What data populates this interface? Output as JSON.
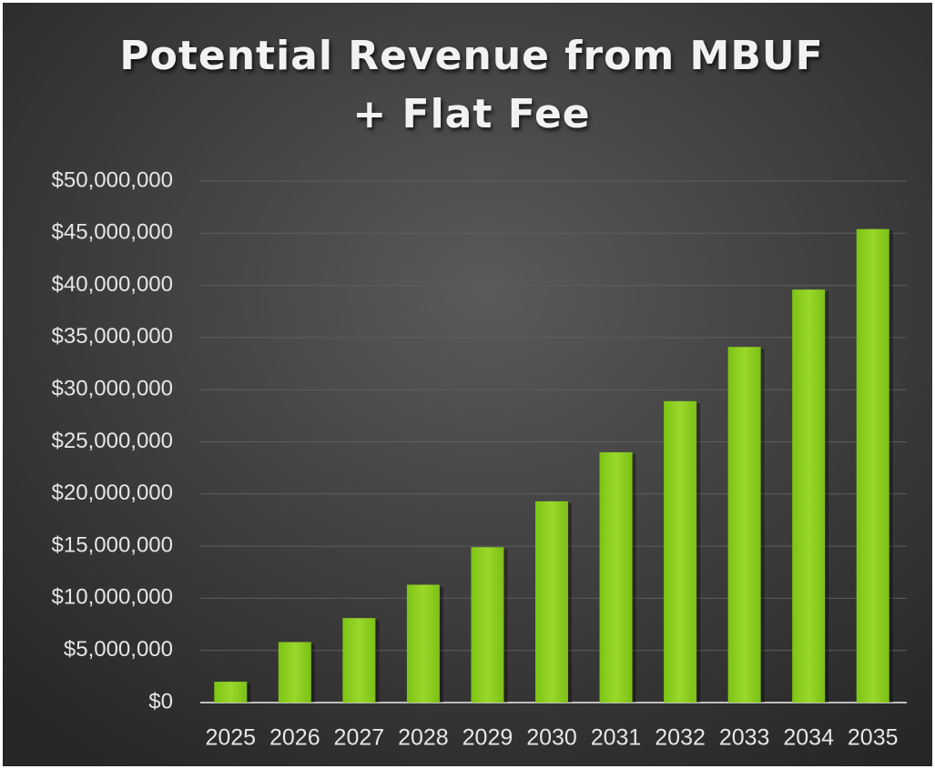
{
  "chart_data": {
    "type": "bar",
    "title": "Potential Revenue from MBUF + Flat Fee",
    "categories": [
      "2025",
      "2026",
      "2027",
      "2028",
      "2029",
      "2030",
      "2031",
      "2032",
      "2033",
      "2034",
      "2035"
    ],
    "values": [
      2000000,
      5800000,
      8100000,
      11300000,
      14900000,
      19300000,
      24000000,
      28900000,
      34100000,
      39600000,
      45400000
    ],
    "color": "#8fd21e",
    "ylim": [
      0,
      50000000
    ],
    "yticks": [
      {
        "value": 0,
        "label": "$0"
      },
      {
        "value": 5000000,
        "label": "$5,000,000"
      },
      {
        "value": 10000000,
        "label": "$10,000,000"
      },
      {
        "value": 15000000,
        "label": "$15,000,000"
      },
      {
        "value": 20000000,
        "label": "$20,000,000"
      },
      {
        "value": 25000000,
        "label": "$25,000,000"
      },
      {
        "value": 30000000,
        "label": "$30,000,000"
      },
      {
        "value": 35000000,
        "label": "$35,000,000"
      },
      {
        "value": 40000000,
        "label": "$40,000,000"
      },
      {
        "value": 45000000,
        "label": "$45,000,000"
      },
      {
        "value": 50000000,
        "label": "$50,000,000"
      }
    ],
    "grid": true
  }
}
